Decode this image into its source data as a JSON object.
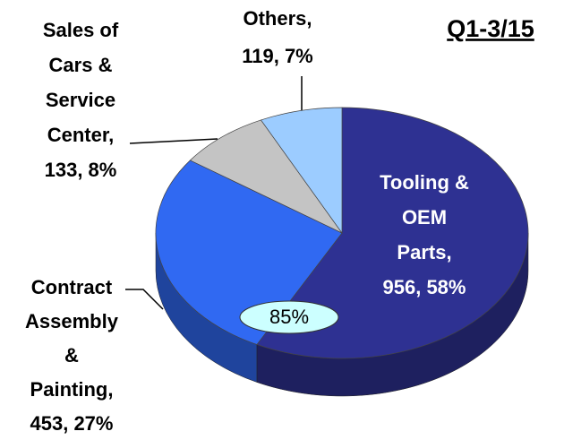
{
  "chart_data": {
    "type": "pie",
    "title": "Q1-3/15",
    "categories": [
      "Tooling & OEM Parts",
      "Contract Assembly & Painting",
      "Sales of Cars & Service Center",
      "Others"
    ],
    "values": [
      956,
      453,
      133,
      119
    ],
    "value_labels": [
      [
        "Tooling &",
        "OEM",
        "Parts,",
        "956, 58%"
      ],
      [
        "Contract",
        "Assembly",
        "&",
        "Painting,",
        "453, 27%"
      ],
      [
        "Sales of",
        "Cars &",
        "Service",
        "Center,",
        "133, 8%"
      ],
      [
        "Others,",
        "119, 7%"
      ]
    ],
    "colors": [
      "#2e3192",
      "#3069f2",
      "#c4c4c4",
      "#9cccff"
    ],
    "annotation": "85%"
  }
}
